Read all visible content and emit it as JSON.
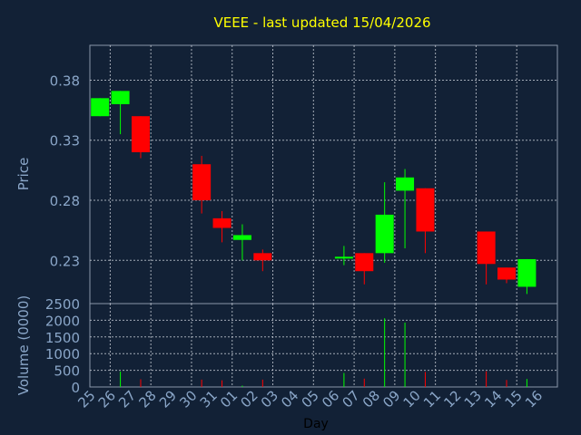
{
  "title": "VEEE - last updated 15/04/2026",
  "colors": {
    "background": "#122136",
    "frame": "#8a97aa",
    "grid": "#c8cdd6",
    "title": "#ffff00",
    "axis_text": "#8aa6c8",
    "up": "#00ff00",
    "down": "#ff0000"
  },
  "chart_data": [
    {
      "type": "candlestick",
      "ylabel": "Price",
      "ylim": [
        0.194,
        0.409
      ],
      "yticks": [
        "0.38",
        "0.33",
        "0.28",
        "0.23"
      ],
      "yticks_values": [
        0.38,
        0.33,
        0.28,
        0.23
      ],
      "grid": true,
      "x": [
        "25",
        "26",
        "27",
        "28",
        "29",
        "30",
        "31",
        "01",
        "02",
        "03",
        "04",
        "05",
        "06",
        "07",
        "08",
        "09",
        "10",
        "11",
        "12",
        "13",
        "14",
        "15",
        "16"
      ],
      "candles": [
        {
          "x": "25",
          "open": 0.35,
          "high": 0.365,
          "low": 0.35,
          "close": 0.365
        },
        {
          "x": "26",
          "open": 0.36,
          "high": 0.371,
          "low": 0.335,
          "close": 0.371
        },
        {
          "x": "27",
          "open": 0.35,
          "high": 0.35,
          "low": 0.315,
          "close": 0.32
        },
        {
          "x": "30",
          "open": 0.31,
          "high": 0.317,
          "low": 0.269,
          "close": 0.28
        },
        {
          "x": "31",
          "open": 0.265,
          "high": 0.271,
          "low": 0.245,
          "close": 0.257
        },
        {
          "x": "01",
          "open": 0.247,
          "high": 0.26,
          "low": 0.23,
          "close": 0.251
        },
        {
          "x": "02",
          "open": 0.236,
          "high": 0.239,
          "low": 0.221,
          "close": 0.23
        },
        {
          "x": "06",
          "open": 0.232,
          "high": 0.242,
          "low": 0.226,
          "close": 0.233
        },
        {
          "x": "07",
          "open": 0.236,
          "high": 0.236,
          "low": 0.21,
          "close": 0.221
        },
        {
          "x": "08",
          "open": 0.236,
          "high": 0.295,
          "low": 0.228,
          "close": 0.268
        },
        {
          "x": "09",
          "open": 0.288,
          "high": 0.306,
          "low": 0.24,
          "close": 0.299
        },
        {
          "x": "10",
          "open": 0.29,
          "high": 0.29,
          "low": 0.236,
          "close": 0.254
        },
        {
          "x": "13",
          "open": 0.254,
          "high": 0.254,
          "low": 0.21,
          "close": 0.227
        },
        {
          "x": "14",
          "open": 0.224,
          "high": 0.224,
          "low": 0.211,
          "close": 0.214
        },
        {
          "x": "15",
          "open": 0.208,
          "high": 0.231,
          "low": 0.202,
          "close": 0.231
        }
      ]
    },
    {
      "type": "bar",
      "ylabel": "Volume (0000)",
      "xlabel": "Day",
      "ylim": [
        0,
        2500
      ],
      "yticks": [
        "2500",
        "2000",
        "1500",
        "1000",
        "500",
        "0"
      ],
      "yticks_values": [
        2500,
        2000,
        1500,
        1000,
        500,
        0
      ],
      "grid": true,
      "categories": [
        "25",
        "26",
        "27",
        "28",
        "29",
        "30",
        "31",
        "01",
        "02",
        "03",
        "04",
        "05",
        "06",
        "07",
        "08",
        "09",
        "10",
        "11",
        "12",
        "13",
        "14",
        "15",
        "16"
      ],
      "bars": [
        {
          "x": "26",
          "value": 460,
          "direction": "up"
        },
        {
          "x": "27",
          "value": 230,
          "direction": "down"
        },
        {
          "x": "30",
          "value": 220,
          "direction": "down"
        },
        {
          "x": "31",
          "value": 200,
          "direction": "down"
        },
        {
          "x": "01",
          "value": 40,
          "direction": "up"
        },
        {
          "x": "02",
          "value": 220,
          "direction": "down"
        },
        {
          "x": "06",
          "value": 420,
          "direction": "up"
        },
        {
          "x": "07",
          "value": 250,
          "direction": "down"
        },
        {
          "x": "08",
          "value": 2060,
          "direction": "up"
        },
        {
          "x": "09",
          "value": 1930,
          "direction": "up"
        },
        {
          "x": "10",
          "value": 450,
          "direction": "down"
        },
        {
          "x": "13",
          "value": 470,
          "direction": "down"
        },
        {
          "x": "14",
          "value": 210,
          "direction": "down"
        },
        {
          "x": "15",
          "value": 240,
          "direction": "up"
        }
      ]
    }
  ]
}
